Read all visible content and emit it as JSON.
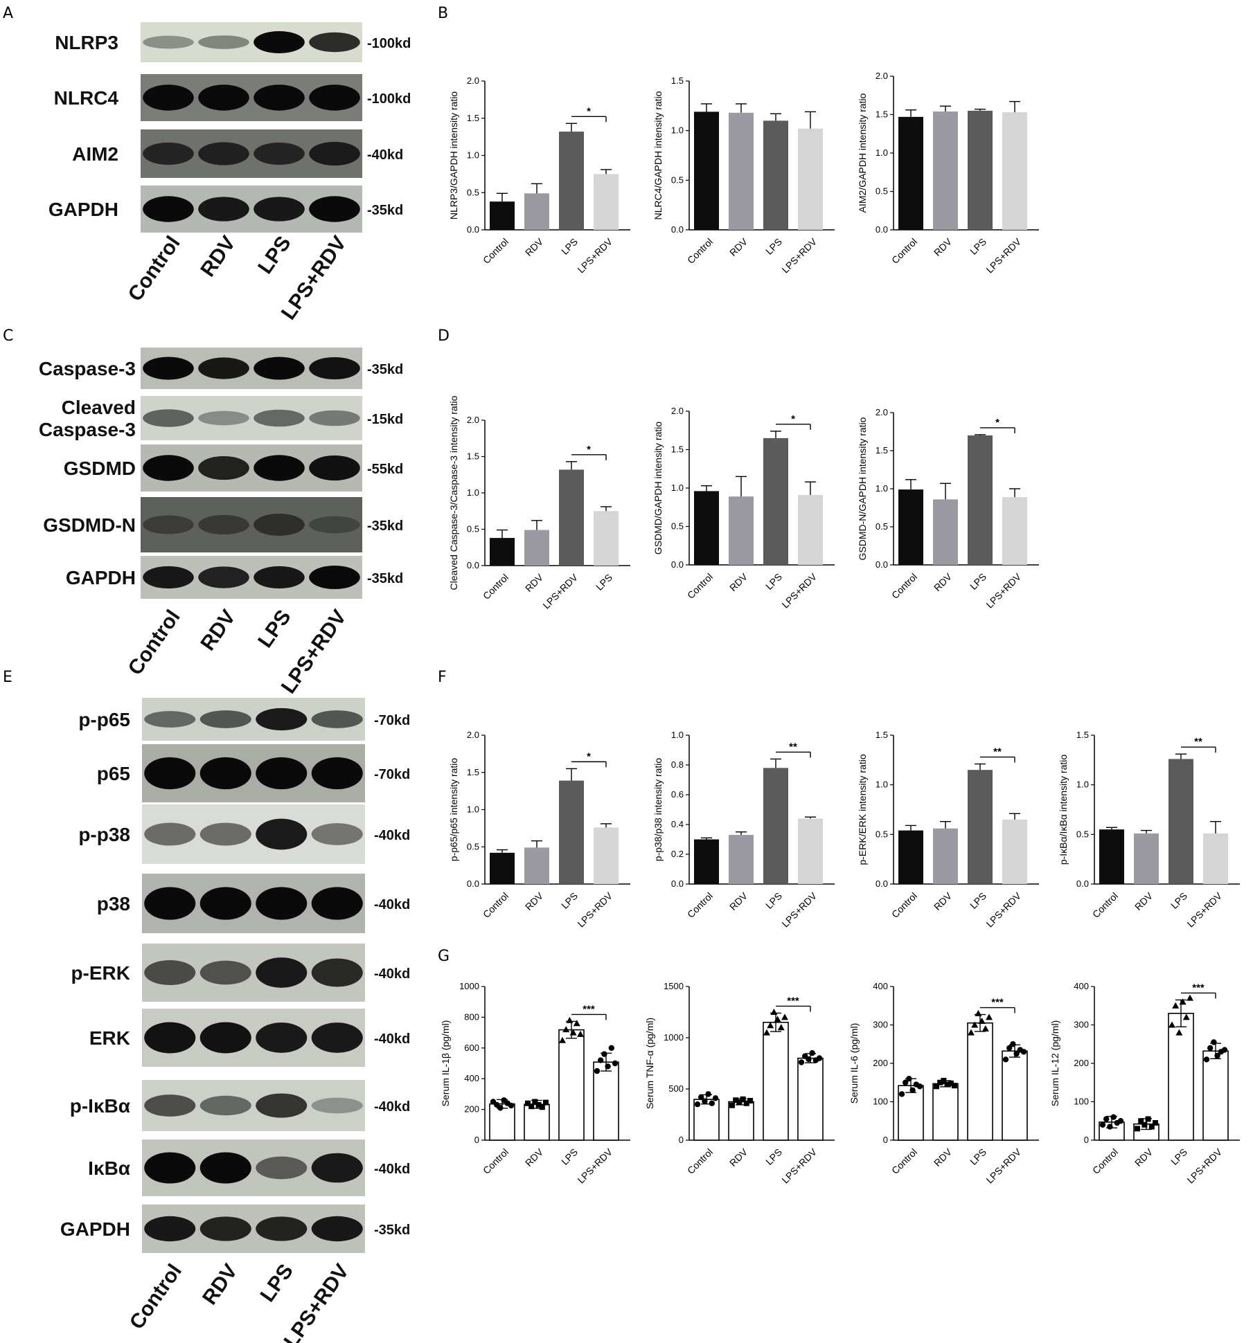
{
  "panels": [
    "A",
    "B",
    "C",
    "D",
    "E",
    "F",
    "G"
  ],
  "colors": {
    "control": "#0d0d0d",
    "rdv": "#9b9aa3",
    "lps": "#5b5b5b",
    "lps_rdv": "#d5d5d5"
  },
  "blots": [
    {
      "panel": "A",
      "lanes": [
        "Control",
        "RDV",
        "LPS",
        "LPS+RDV"
      ],
      "rows": [
        {
          "label": "NLRP3",
          "kd": "-100kd",
          "bg": "#d7dbd0",
          "bands": [
            0.25,
            0.3,
            1.0,
            0.8
          ]
        },
        {
          "label": "NLRC4",
          "kd": "-100kd",
          "bg": "#7a7c78",
          "bands": [
            1,
            1,
            1,
            1
          ]
        },
        {
          "label": "AIM2",
          "kd": "-40kd",
          "bg": "#6e716c",
          "bands": [
            0.7,
            0.75,
            0.7,
            0.8
          ]
        },
        {
          "label": "GAPDH",
          "kd": "-35kd",
          "bg": "#b4b8b2",
          "bands": [
            1,
            0.9,
            0.9,
            1
          ]
        }
      ]
    },
    {
      "panel": "C",
      "lanes": [
        "Control",
        "RDV",
        "LPS",
        "LPS+RDV"
      ],
      "rows": [
        {
          "label": "Caspase-3",
          "kd": "-35kd",
          "bg": "#b9bdb6",
          "bands": [
            1,
            0.9,
            1,
            0.95
          ]
        },
        {
          "label": "Cleaved\nCaspase-3",
          "kd": "-15kd",
          "bg": "#cfd3cb",
          "bands": [
            0.5,
            0.25,
            0.45,
            0.35
          ]
        },
        {
          "label": "GSDMD",
          "kd": "-55kd",
          "bg": "#b5b9b1",
          "bands": [
            1,
            0.85,
            1,
            0.95
          ]
        },
        {
          "label": "GSDMD-N",
          "kd": "-35kd",
          "bg": "#5e605c",
          "bands": [
            0.3,
            0.35,
            0.5,
            0.2
          ]
        },
        {
          "label": "GAPDH",
          "kd": "-35kd",
          "bg": "#bcc0b8",
          "bands": [
            0.9,
            0.85,
            0.9,
            1
          ]
        }
      ]
    },
    {
      "panel": "E",
      "lanes": [
        "Control",
        "RDV",
        "LPS",
        "LPS+RDV"
      ],
      "rows": [
        {
          "label": "p-p65",
          "kd": "-70kd",
          "bg": "#cdd1c9",
          "bands": [
            0.45,
            0.55,
            0.9,
            0.55
          ]
        },
        {
          "label": "p65",
          "kd": "-70kd",
          "bg": "#a9ada5",
          "bands": [
            1,
            1,
            1,
            1
          ]
        },
        {
          "label": "p-p38",
          "kd": "-40kd",
          "bg": "#d9dbd6",
          "bands": [
            0.45,
            0.45,
            0.9,
            0.4
          ]
        },
        {
          "label": "p38",
          "kd": "-40kd",
          "bg": "#b1b4ae",
          "bands": [
            1,
            1,
            1,
            1
          ]
        },
        {
          "label": "p-ERK",
          "kd": "-40kd",
          "bg": "#c3c6bf",
          "bands": [
            0.6,
            0.55,
            0.9,
            0.8
          ]
        },
        {
          "label": "ERK",
          "kd": "-40kd",
          "bg": "#c8cbc4",
          "bands": [
            0.95,
            0.95,
            0.9,
            0.9
          ]
        },
        {
          "label": "p-IκBα",
          "kd": "-40kd",
          "bg": "#cdd0c9",
          "bands": [
            0.6,
            0.45,
            0.75,
            0.2
          ]
        },
        {
          "label": "IκBα",
          "kd": "-40kd",
          "bg": "#c1c4bd",
          "bands": [
            1,
            1,
            0.5,
            0.9
          ]
        },
        {
          "label": "GAPDH",
          "kd": "-35kd",
          "bg": "#bec1ba",
          "bands": [
            0.9,
            0.85,
            0.85,
            0.9
          ]
        }
      ]
    }
  ],
  "chart_data": [
    {
      "type": "bar",
      "panel": "B",
      "categories": [
        "Control",
        "RDV",
        "LPS",
        "LPS+RDV"
      ],
      "values": [
        0.38,
        0.49,
        1.32,
        0.75
      ],
      "errors": [
        0.11,
        0.13,
        0.11,
        0.06
      ],
      "ylabel": "NLRP3/GAPDH intensity ratio",
      "ylim": [
        0,
        2.0
      ],
      "ticks": [
        0.0,
        0.5,
        1.0,
        1.5,
        2.0
      ],
      "sig": {
        "from": 2,
        "to": 3,
        "text": "*"
      }
    },
    {
      "type": "bar",
      "panel": "B",
      "categories": [
        "Control",
        "RDV",
        "LPS",
        "LPS+RDV"
      ],
      "values": [
        1.19,
        1.18,
        1.1,
        1.02
      ],
      "errors": [
        0.08,
        0.09,
        0.07,
        0.17
      ],
      "ylabel": "NLRC4/GAPDH intensity ratio",
      "ylim": [
        0,
        1.5
      ],
      "ticks": [
        0.0,
        0.5,
        1.0,
        1.5
      ]
    },
    {
      "type": "bar",
      "panel": "B",
      "categories": [
        "Control",
        "RDV",
        "LPS",
        "LPS+RDV"
      ],
      "values": [
        1.47,
        1.54,
        1.55,
        1.53
      ],
      "errors": [
        0.09,
        0.07,
        0.02,
        0.14
      ],
      "ylabel": "AIM2/GAPDH intensity ratio",
      "ylim": [
        0,
        2.0
      ],
      "ticks": [
        0.0,
        0.5,
        1.0,
        1.5,
        2.0
      ]
    },
    {
      "type": "bar",
      "panel": "D",
      "categories": [
        "Control",
        "RDV",
        "LPS+RDV",
        "LPS"
      ],
      "values": [
        0.38,
        0.49,
        1.32,
        0.75
      ],
      "errors": [
        0.11,
        0.13,
        0.11,
        0.06
      ],
      "ylabel": "Cleaved Caspase-3/Caspase-3 intensity ratio",
      "ylim": [
        0,
        2.0
      ],
      "ticks": [
        0.0,
        0.5,
        1.0,
        1.5,
        2.0
      ],
      "sig": {
        "from": 2,
        "to": 3,
        "text": "*"
      }
    },
    {
      "type": "bar",
      "panel": "D",
      "categories": [
        "Control",
        "RDV",
        "LPS",
        "LPS+RDV"
      ],
      "values": [
        0.96,
        0.89,
        1.65,
        0.91
      ],
      "errors": [
        0.07,
        0.26,
        0.09,
        0.17
      ],
      "ylabel": "GSDMD/GAPDH intensity ratio",
      "ylim": [
        0,
        2.0
      ],
      "ticks": [
        0.0,
        0.5,
        1.0,
        1.5,
        2.0
      ],
      "sig": {
        "from": 2,
        "to": 3,
        "text": "*"
      }
    },
    {
      "type": "bar",
      "panel": "D",
      "categories": [
        "Control",
        "RDV",
        "LPS",
        "LPS+RDV"
      ],
      "values": [
        0.99,
        0.86,
        1.7,
        0.89
      ],
      "errors": [
        0.13,
        0.21,
        0.01,
        0.11
      ],
      "ylabel": "GSDMD-N/GAPDH intensity ratio",
      "ylim": [
        0,
        2.0
      ],
      "ticks": [
        0.0,
        0.5,
        1.0,
        1.5,
        2.0
      ],
      "sig": {
        "from": 2,
        "to": 3,
        "text": "*"
      }
    },
    {
      "type": "bar",
      "panel": "F",
      "categories": [
        "Control",
        "RDV",
        "LPS",
        "LPS+RDV"
      ],
      "values": [
        0.42,
        0.49,
        1.39,
        0.76
      ],
      "errors": [
        0.04,
        0.09,
        0.16,
        0.05
      ],
      "ylabel": "p-p65/p65 intensity ratio",
      "ylim": [
        0,
        2.0
      ],
      "ticks": [
        0.0,
        0.5,
        1.0,
        1.5,
        2.0
      ],
      "sig": {
        "from": 2,
        "to": 3,
        "text": "*"
      }
    },
    {
      "type": "bar",
      "panel": "F",
      "categories": [
        "Control",
        "RDV",
        "LPS",
        "LPS+RDV"
      ],
      "values": [
        0.3,
        0.33,
        0.78,
        0.44
      ],
      "errors": [
        0.01,
        0.02,
        0.06,
        0.01
      ],
      "ylabel": "p-p38/p38 intensity ratio",
      "ylim": [
        0,
        1.0
      ],
      "ticks": [
        0.0,
        0.2,
        0.4,
        0.6,
        0.8,
        1.0
      ],
      "sig": {
        "from": 2,
        "to": 3,
        "text": "**"
      }
    },
    {
      "type": "bar",
      "panel": "F",
      "categories": [
        "Control",
        "RDV",
        "LPS",
        "LPS+RDV"
      ],
      "values": [
        0.54,
        0.56,
        1.15,
        0.65
      ],
      "errors": [
        0.05,
        0.07,
        0.06,
        0.06
      ],
      "ylabel": "p-ERK/ERK intensity ratio",
      "ylim": [
        0,
        1.5
      ],
      "ticks": [
        0.0,
        0.5,
        1.0,
        1.5
      ],
      "sig": {
        "from": 2,
        "to": 3,
        "text": "**"
      }
    },
    {
      "type": "bar",
      "panel": "F",
      "categories": [
        "Control",
        "RDV",
        "LPS",
        "LPS+RDV"
      ],
      "values": [
        0.55,
        0.51,
        1.26,
        0.51
      ],
      "errors": [
        0.02,
        0.03,
        0.05,
        0.12
      ],
      "ylabel": "p-IκBα/IκBα intensity ratio",
      "ylim": [
        0,
        1.5
      ],
      "ticks": [
        0.0,
        0.5,
        1.0,
        1.5
      ],
      "sig": {
        "from": 2,
        "to": 3,
        "text": "**"
      }
    },
    {
      "type": "bar",
      "panel": "G",
      "points": true,
      "categories": [
        "Control",
        "RDV",
        "LPS",
        "LPS+RDV"
      ],
      "values": [
        236,
        233,
        718,
        508
      ],
      "errors": [
        28,
        26,
        55,
        58
      ],
      "ylabel": "Serum IL-1β (pg/ml)",
      "ylim": [
        0,
        1000
      ],
      "ticks": [
        0,
        200,
        400,
        600,
        800,
        1000
      ],
      "sig": {
        "from": 2,
        "to": 3,
        "text": "***"
      },
      "points_data": [
        [
          250,
          230,
          210,
          260,
          240,
          225
        ],
        [
          240,
          220,
          250,
          230,
          215,
          245
        ],
        [
          650,
          720,
          780,
          700,
          760,
          690
        ],
        [
          450,
          520,
          560,
          480,
          600,
          500
        ]
      ]
    },
    {
      "type": "bar",
      "panel": "G",
      "points": true,
      "categories": [
        "Control",
        "RDV",
        "LPS",
        "LPS+RDV"
      ],
      "values": [
        398,
        375,
        1150,
        800
      ],
      "errors": [
        45,
        30,
        90,
        45
      ],
      "ylabel": "Serum TNF-α (pg/ml)",
      "ylim": [
        0,
        1500
      ],
      "ticks": [
        0,
        500,
        1000,
        1500
      ],
      "sig": {
        "from": 2,
        "to": 3,
        "text": "***"
      },
      "points_data": [
        [
          350,
          420,
          380,
          450,
          360,
          410
        ],
        [
          340,
          390,
          370,
          400,
          360,
          385
        ],
        [
          1050,
          1120,
          1250,
          1180,
          1100,
          1200
        ],
        [
          760,
          820,
          790,
          850,
          780,
          800
        ]
      ]
    },
    {
      "type": "bar",
      "panel": "G",
      "points": true,
      "categories": [
        "Control",
        "RDV",
        "LPS",
        "LPS+RDV"
      ],
      "values": [
        142,
        147,
        305,
        232
      ],
      "errors": [
        18,
        8,
        22,
        16
      ],
      "ylabel": "Serum IL-6 (pg/ml)",
      "ylim": [
        0,
        400
      ],
      "ticks": [
        0,
        100,
        200,
        300,
        400
      ],
      "sig": {
        "from": 2,
        "to": 3,
        "text": "***"
      },
      "points_data": [
        [
          120,
          150,
          160,
          130,
          145,
          140
        ],
        [
          140,
          150,
          155,
          145,
          148,
          142
        ],
        [
          280,
          300,
          330,
          310,
          290,
          320
        ],
        [
          210,
          240,
          250,
          225,
          235,
          230
        ]
      ]
    },
    {
      "type": "bar",
      "panel": "G",
      "points": true,
      "categories": [
        "Control",
        "RDV",
        "LPS",
        "LPS+RDV"
      ],
      "values": [
        47,
        42,
        330,
        232
      ],
      "errors": [
        15,
        14,
        35,
        20
      ],
      "ylabel": "Serum IL-12 (pg/ml)",
      "ylim": [
        0,
        400
      ],
      "ticks": [
        0,
        100,
        200,
        300,
        400
      ],
      "sig": {
        "from": 2,
        "to": 3,
        "text": "***"
      },
      "points_data": [
        [
          40,
          55,
          35,
          60,
          45,
          50
        ],
        [
          30,
          50,
          40,
          55,
          35,
          45
        ],
        [
          300,
          350,
          280,
          360,
          320,
          370
        ],
        [
          210,
          240,
          255,
          220,
          230,
          235
        ]
      ]
    }
  ]
}
